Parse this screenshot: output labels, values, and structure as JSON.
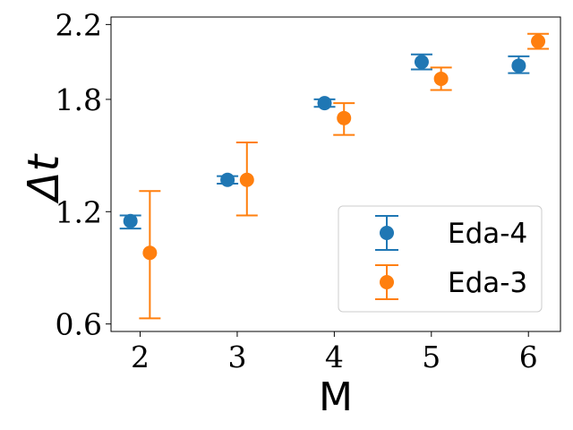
{
  "chart_data": {
    "type": "scatter",
    "title": "",
    "xlabel": "M",
    "ylabel": "Δt",
    "xlim": [
      1.7,
      6.33
    ],
    "ylim": [
      0.56,
      2.24
    ],
    "xticks": [
      "2",
      "3",
      "4",
      "5",
      "6"
    ],
    "yticks": [
      "0.6",
      "1.2",
      "1.8",
      "2.2"
    ],
    "grid": false,
    "legend_position": "bottom-right",
    "series": [
      {
        "name": "Eda-4",
        "color": "#1f77b4",
        "x_offset": -0.1,
        "points": [
          {
            "x": 2,
            "y": 1.15,
            "err_low": 1.11,
            "err_high": 1.18
          },
          {
            "x": 3,
            "y": 1.37,
            "err_low": 1.35,
            "err_high": 1.39
          },
          {
            "x": 4,
            "y": 1.78,
            "err_low": 1.76,
            "err_high": 1.8
          },
          {
            "x": 5,
            "y": 2.0,
            "err_low": 1.96,
            "err_high": 2.04
          },
          {
            "x": 6,
            "y": 1.98,
            "err_low": 1.94,
            "err_high": 2.03
          }
        ]
      },
      {
        "name": "Eda-3",
        "color": "#ff7f0e",
        "x_offset": 0.1,
        "points": [
          {
            "x": 2,
            "y": 0.98,
            "err_low": 0.63,
            "err_high": 1.31
          },
          {
            "x": 3,
            "y": 1.37,
            "err_low": 1.18,
            "err_high": 1.57
          },
          {
            "x": 4,
            "y": 1.7,
            "err_low": 1.61,
            "err_high": 1.78
          },
          {
            "x": 5,
            "y": 1.91,
            "err_low": 1.85,
            "err_high": 1.97
          },
          {
            "x": 6,
            "y": 2.11,
            "err_low": 2.07,
            "err_high": 2.15
          }
        ]
      }
    ]
  }
}
